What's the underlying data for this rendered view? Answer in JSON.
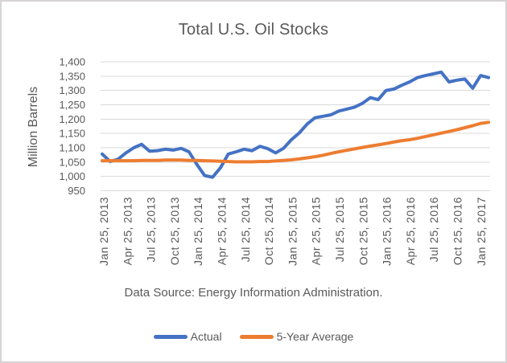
{
  "frame": {
    "border_color": "#d6d4d4",
    "background": "#ffffff"
  },
  "chart_data": {
    "type": "line",
    "title": "Total U.S. Oil Stocks",
    "ylabel": "Million Barrels",
    "xlabel": "",
    "caption": "Data Source: Energy Information Administration.",
    "ylim": [
      950,
      1400
    ],
    "y_ticks": [
      950,
      1000,
      1050,
      1100,
      1150,
      1200,
      1250,
      1300,
      1350,
      1400
    ],
    "y_tick_labels": [
      "950",
      "1,000",
      "1,050",
      "1,100",
      "1,150",
      "1,200",
      "1,250",
      "1,300",
      "1,350",
      "1,400"
    ],
    "x_tick_labels": [
      "Jan 25, 2013",
      "Apr 25, 2013",
      "Jul 25, 2013",
      "Oct 25, 2013",
      "Jan 25, 2014",
      "Apr 25, 2014",
      "Jul 25, 2014",
      "Oct 25, 2014",
      "Jan 25, 2015",
      "Apr 25, 2015",
      "Jul 25, 2015",
      "Oct 25, 2015",
      "Jan 25, 2016",
      "Apr 25, 2016",
      "Jul 25, 2016",
      "Oct 25, 2016",
      "Jan 25, 2017"
    ],
    "grid": true,
    "grid_color": "#d9d9d9",
    "text_color": "#595959",
    "legend_position": "bottom",
    "series": [
      {
        "name": "Actual",
        "color": "#4472C4",
        "values": [
          1078,
          1052,
          1060,
          1082,
          1100,
          1112,
          1088,
          1090,
          1095,
          1092,
          1098,
          1086,
          1042,
          1003,
          997,
          1030,
          1078,
          1086,
          1095,
          1090,
          1105,
          1097,
          1082,
          1098,
          1128,
          1152,
          1183,
          1205,
          1210,
          1215,
          1228,
          1235,
          1242,
          1255,
          1275,
          1268,
          1300,
          1305,
          1318,
          1330,
          1345,
          1352,
          1358,
          1364,
          1330,
          1336,
          1340,
          1308,
          1352,
          1345
        ]
      },
      {
        "name": "5-Year Average",
        "color": "#ED7D31",
        "values": [
          1055,
          1055,
          1055,
          1055,
          1055,
          1056,
          1056,
          1056,
          1057,
          1057,
          1057,
          1056,
          1056,
          1055,
          1054,
          1053,
          1052,
          1051,
          1051,
          1051,
          1052,
          1052,
          1054,
          1056,
          1058,
          1061,
          1065,
          1069,
          1074,
          1080,
          1086,
          1091,
          1096,
          1101,
          1106,
          1110,
          1115,
          1120,
          1125,
          1128,
          1133,
          1139,
          1145,
          1151,
          1157,
          1163,
          1170,
          1177,
          1185,
          1189
        ]
      }
    ]
  }
}
